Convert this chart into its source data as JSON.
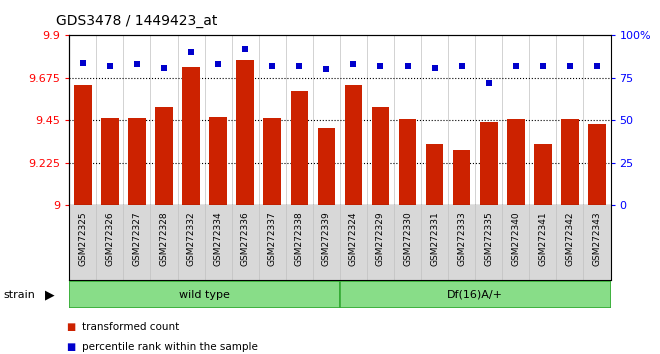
{
  "title": "GDS3478 / 1449423_at",
  "categories": [
    "GSM272325",
    "GSM272326",
    "GSM272327",
    "GSM272328",
    "GSM272332",
    "GSM272334",
    "GSM272336",
    "GSM272337",
    "GSM272338",
    "GSM272339",
    "GSM272324",
    "GSM272329",
    "GSM272330",
    "GSM272331",
    "GSM272333",
    "GSM272335",
    "GSM272340",
    "GSM272341",
    "GSM272342",
    "GSM272343"
  ],
  "bar_values": [
    9.635,
    9.46,
    9.465,
    9.52,
    9.73,
    9.47,
    9.77,
    9.46,
    9.605,
    9.41,
    9.635,
    9.52,
    9.455,
    9.325,
    9.295,
    9.44,
    9.455,
    9.325,
    9.455,
    9.43
  ],
  "percentile_values": [
    84,
    82,
    83,
    81,
    90,
    83,
    92,
    82,
    82,
    80,
    83,
    82,
    82,
    81,
    82,
    72,
    82,
    82,
    82,
    82
  ],
  "ylim_left": [
    9.0,
    9.9
  ],
  "ylim_right": [
    0,
    100
  ],
  "yticks_left": [
    9.0,
    9.225,
    9.45,
    9.675,
    9.9
  ],
  "yticks_right": [
    0,
    25,
    50,
    75,
    100
  ],
  "ytick_labels_left": [
    "9",
    "9.225",
    "9.45",
    "9.675",
    "9.9"
  ],
  "ytick_labels_right": [
    "0",
    "25",
    "50",
    "75",
    "100%"
  ],
  "hlines": [
    9.225,
    9.45,
    9.675
  ],
  "bar_color": "#cc2200",
  "percentile_color": "#0000cc",
  "group1_label": "wild type",
  "group2_label": "Df(16)A/+",
  "group1_count": 10,
  "group2_count": 10,
  "legend_bar_label": "transformed count",
  "legend_pct_label": "percentile rank within the sample",
  "strain_label": "strain",
  "group_bg_color": "#88dd88",
  "xtick_bg_color": "#d8d8d8",
  "plot_bg_color": "#ffffff",
  "divider_color": "#c0c0c0"
}
